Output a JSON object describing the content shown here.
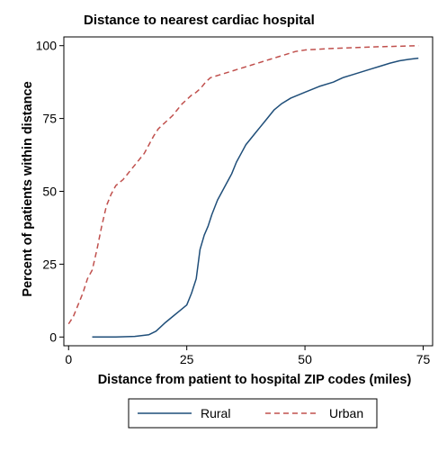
{
  "chart_data": {
    "type": "line",
    "title": "Distance to nearest cardiac hospital",
    "xlabel": "Distance from patient to hospital ZIP codes (miles)",
    "ylabel": "Percent of patients within distance",
    "xlim": [
      -1,
      77
    ],
    "ylim": [
      -3,
      103
    ],
    "xticks": [
      0,
      25,
      50,
      75
    ],
    "yticks": [
      0,
      25,
      50,
      75,
      100
    ],
    "grid": false,
    "legend_position": "bottom",
    "series": [
      {
        "name": "Rural",
        "color": "#1f4e79",
        "dash": "solid",
        "points": [
          [
            5,
            0
          ],
          [
            10,
            0
          ],
          [
            14,
            0.2
          ],
          [
            17,
            0.8
          ],
          [
            18.5,
            2
          ],
          [
            19.5,
            3.5
          ],
          [
            20.5,
            5
          ],
          [
            22,
            7
          ],
          [
            23.5,
            9
          ],
          [
            25,
            11
          ],
          [
            26,
            15
          ],
          [
            27,
            20
          ],
          [
            27.8,
            30
          ],
          [
            28.7,
            35
          ],
          [
            29.5,
            38
          ],
          [
            30.3,
            42
          ],
          [
            31.5,
            47
          ],
          [
            32.5,
            50
          ],
          [
            33.5,
            53
          ],
          [
            34.5,
            56
          ],
          [
            35.5,
            60
          ],
          [
            36.5,
            63
          ],
          [
            37.5,
            66
          ],
          [
            38.5,
            68
          ],
          [
            39.5,
            70
          ],
          [
            40.5,
            72
          ],
          [
            41.5,
            74
          ],
          [
            42.5,
            76
          ],
          [
            43.5,
            78
          ],
          [
            45,
            80
          ],
          [
            47,
            82
          ],
          [
            50,
            84
          ],
          [
            53,
            86
          ],
          [
            56,
            87.5
          ],
          [
            58,
            89
          ],
          [
            60,
            90
          ],
          [
            62,
            91
          ],
          [
            64,
            92
          ],
          [
            66,
            93
          ],
          [
            68,
            94
          ],
          [
            70,
            94.8
          ],
          [
            72,
            95.3
          ],
          [
            74,
            95.7
          ]
        ]
      },
      {
        "name": "Urban",
        "color": "#c0504d",
        "dash": "dashed",
        "points": [
          [
            0,
            4.5
          ],
          [
            1,
            7
          ],
          [
            2,
            11
          ],
          [
            3,
            15
          ],
          [
            4,
            20
          ],
          [
            5,
            23
          ],
          [
            6,
            30
          ],
          [
            7,
            38
          ],
          [
            8,
            45
          ],
          [
            9,
            49
          ],
          [
            10,
            52
          ],
          [
            11.5,
            54
          ],
          [
            13,
            57
          ],
          [
            14.5,
            60
          ],
          [
            16,
            63
          ],
          [
            17,
            66
          ],
          [
            18,
            69
          ],
          [
            19,
            71.5
          ],
          [
            20,
            73
          ],
          [
            21,
            74.5
          ],
          [
            22,
            76
          ],
          [
            23,
            78
          ],
          [
            24,
            80
          ],
          [
            25,
            81.5
          ],
          [
            26,
            83
          ],
          [
            27,
            84
          ],
          [
            28,
            85.5
          ],
          [
            29,
            87.5
          ],
          [
            30,
            89
          ],
          [
            32,
            90
          ],
          [
            34,
            91
          ],
          [
            36,
            92
          ],
          [
            38,
            93
          ],
          [
            40,
            94
          ],
          [
            43,
            95.5
          ],
          [
            46,
            97
          ],
          [
            48,
            98
          ],
          [
            50,
            98.5
          ],
          [
            55,
            99
          ],
          [
            60,
            99.3
          ],
          [
            65,
            99.6
          ],
          [
            70,
            99.8
          ],
          [
            74,
            100
          ]
        ]
      }
    ]
  }
}
